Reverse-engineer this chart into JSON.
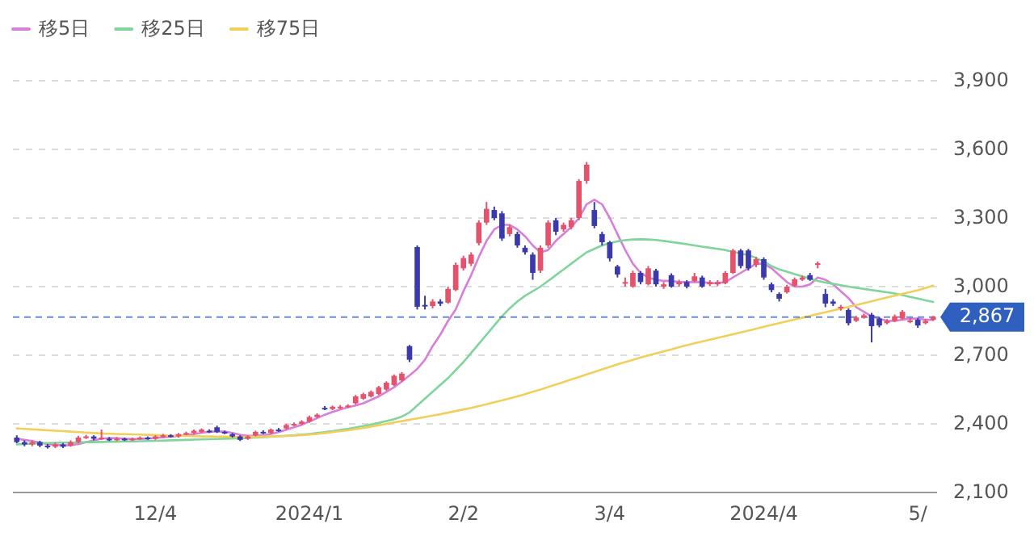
{
  "chart_data": {
    "type": "candlestick",
    "categories": [
      null,
      null,
      null,
      null,
      null,
      null,
      null,
      null,
      null,
      null,
      null,
      null,
      null,
      null,
      null,
      null,
      null,
      null,
      "12/4",
      null,
      null,
      null,
      null,
      null,
      null,
      null,
      null,
      null,
      null,
      null,
      null,
      null,
      null,
      null,
      null,
      null,
      null,
      null,
      "2024/1",
      null,
      null,
      null,
      null,
      null,
      null,
      null,
      null,
      null,
      null,
      null,
      null,
      null,
      null,
      null,
      null,
      null,
      null,
      null,
      "2/2",
      null,
      null,
      null,
      null,
      null,
      null,
      null,
      null,
      null,
      null,
      null,
      null,
      null,
      null,
      null,
      null,
      null,
      null,
      "3/4",
      null,
      null,
      null,
      null,
      null,
      null,
      null,
      null,
      null,
      null,
      null,
      null,
      null,
      null,
      null,
      null,
      null,
      null,
      null,
      "2024/4",
      null,
      null,
      null,
      null,
      null,
      null,
      null,
      null,
      null,
      null,
      null,
      null,
      null,
      null,
      null,
      null,
      null,
      null,
      null,
      "5/",
      null,
      null
    ],
    "ohlc": [
      [
        2340,
        2350,
        2315,
        2320
      ],
      [
        2320,
        2328,
        2302,
        2310
      ],
      [
        2310,
        2328,
        2302,
        2320
      ],
      [
        2320,
        2326,
        2298,
        2305
      ],
      [
        2305,
        2312,
        2292,
        2300
      ],
      [
        2300,
        2318,
        2294,
        2310
      ],
      [
        2310,
        2316,
        2294,
        2300
      ],
      [
        2305,
        2328,
        2300,
        2320
      ],
      [
        2320,
        2348,
        2315,
        2340
      ],
      [
        2340,
        2352,
        2334,
        2345
      ],
      [
        2345,
        2350,
        2328,
        2335
      ],
      [
        2340,
        2375,
        2330,
        2340
      ],
      [
        2335,
        2342,
        2325,
        2330
      ],
      [
        2330,
        2342,
        2325,
        2335
      ],
      [
        2335,
        2340,
        2325,
        2330
      ],
      [
        2330,
        2340,
        2325,
        2335
      ],
      [
        2335,
        2345,
        2330,
        2340
      ],
      [
        2340,
        2345,
        2330,
        2335
      ],
      [
        2335,
        2350,
        2330,
        2345
      ],
      [
        2345,
        2356,
        2340,
        2350
      ],
      [
        2350,
        2355,
        2340,
        2345
      ],
      [
        2345,
        2360,
        2340,
        2355
      ],
      [
        2355,
        2366,
        2350,
        2360
      ],
      [
        2360,
        2375,
        2355,
        2370
      ],
      [
        2365,
        2380,
        2360,
        2375
      ],
      [
        2370,
        2376,
        2360,
        2365
      ],
      [
        2385,
        2392,
        2360,
        2365
      ],
      [
        2365,
        2370,
        2355,
        2360
      ],
      [
        2355,
        2360,
        2340,
        2345
      ],
      [
        2345,
        2350,
        2325,
        2330
      ],
      [
        2335,
        2350,
        2330,
        2345
      ],
      [
        2350,
        2370,
        2345,
        2365
      ],
      [
        2365,
        2372,
        2355,
        2360
      ],
      [
        2360,
        2380,
        2355,
        2375
      ],
      [
        2375,
        2382,
        2365,
        2370
      ],
      [
        2380,
        2400,
        2375,
        2395
      ],
      [
        2395,
        2406,
        2390,
        2400
      ],
      [
        2400,
        2416,
        2395,
        2410
      ],
      [
        2410,
        2436,
        2405,
        2430
      ],
      [
        2430,
        2446,
        2425,
        2440
      ],
      [
        2470,
        2478,
        2460,
        2465
      ],
      [
        2465,
        2480,
        2460,
        2475
      ],
      [
        2470,
        2482,
        2465,
        2475
      ],
      [
        2475,
        2486,
        2470,
        2480
      ],
      [
        2490,
        2526,
        2485,
        2520
      ],
      [
        2510,
        2536,
        2505,
        2530
      ],
      [
        2520,
        2546,
        2515,
        2540
      ],
      [
        2530,
        2566,
        2525,
        2560
      ],
      [
        2550,
        2586,
        2545,
        2580
      ],
      [
        2570,
        2616,
        2565,
        2610
      ],
      [
        2590,
        2626,
        2585,
        2620
      ],
      [
        2740,
        2745,
        2670,
        2680
      ],
      [
        3173,
        3180,
        2900,
        2912
      ],
      [
        2920,
        2960,
        2900,
        2915
      ],
      [
        2915,
        2945,
        2905,
        2935
      ],
      [
        2935,
        2945,
        2915,
        2925
      ],
      [
        2930,
        3000,
        2925,
        2990
      ],
      [
        2985,
        3105,
        2980,
        3095
      ],
      [
        3080,
        3135,
        3070,
        3125
      ],
      [
        3100,
        3150,
        3090,
        3140
      ],
      [
        3190,
        3290,
        3180,
        3280
      ],
      [
        3280,
        3370,
        3270,
        3340
      ],
      [
        3335,
        3350,
        3290,
        3300
      ],
      [
        3320,
        3330,
        3200,
        3210
      ],
      [
        3230,
        3270,
        3220,
        3260
      ],
      [
        3230,
        3240,
        3170,
        3180
      ],
      [
        3170,
        3180,
        3140,
        3150
      ],
      [
        3140,
        3150,
        3030,
        3060
      ],
      [
        3070,
        3180,
        3060,
        3170
      ],
      [
        3180,
        3290,
        3170,
        3280
      ],
      [
        3290,
        3300,
        3225,
        3240
      ],
      [
        3250,
        3280,
        3240,
        3270
      ],
      [
        3260,
        3300,
        3250,
        3290
      ],
      [
        3300,
        3470,
        3290,
        3462
      ],
      [
        3462,
        3545,
        3450,
        3533
      ],
      [
        3335,
        3370,
        3255,
        3265
      ],
      [
        3230,
        3240,
        3180,
        3194
      ],
      [
        3194,
        3200,
        3110,
        3123
      ],
      [
        3088,
        3095,
        3040,
        3053
      ],
      [
        3018,
        3040,
        3000,
        3020
      ],
      [
        3000,
        3070,
        2995,
        3060
      ],
      [
        3060,
        3068,
        3010,
        3020
      ],
      [
        3010,
        3090,
        3005,
        3080
      ],
      [
        3070,
        3078,
        3000,
        3010
      ],
      [
        3000,
        3020,
        2990,
        3010
      ],
      [
        3050,
        3058,
        2995,
        3000
      ],
      [
        3010,
        3030,
        3000,
        3020
      ],
      [
        3020,
        3028,
        2992,
        3000
      ],
      [
        3025,
        3060,
        3020,
        3045
      ],
      [
        3040,
        3048,
        2995,
        3000
      ],
      [
        3010,
        3028,
        3002,
        3020
      ],
      [
        3010,
        3028,
        3002,
        3020
      ],
      [
        3015,
        3068,
        3010,
        3060
      ],
      [
        3060,
        3165,
        3055,
        3158
      ],
      [
        3158,
        3165,
        3080,
        3090
      ],
      [
        3158,
        3165,
        3070,
        3080
      ],
      [
        3095,
        3130,
        3085,
        3120
      ],
      [
        3120,
        3128,
        3030,
        3040
      ],
      [
        3010,
        3018,
        2975,
        2985
      ],
      [
        2968,
        2975,
        2935,
        2947
      ],
      [
        2975,
        3008,
        2970,
        3000
      ],
      [
        3004,
        3040,
        3000,
        3032
      ],
      [
        3030,
        3048,
        3025,
        3040
      ],
      [
        3050,
        3060,
        3025,
        3030
      ],
      [
        3095,
        3110,
        3080,
        3102
      ],
      [
        2968,
        2990,
        2910,
        2926
      ],
      [
        2935,
        2945,
        2915,
        2925
      ],
      [
        2905,
        2920,
        2895,
        2912
      ],
      [
        2898,
        2905,
        2830,
        2840
      ],
      [
        2850,
        2872,
        2845,
        2865
      ],
      [
        2865,
        2882,
        2860,
        2875
      ],
      [
        2877,
        2885,
        2756,
        2827
      ],
      [
        2860,
        2868,
        2822,
        2830
      ],
      [
        2840,
        2858,
        2835,
        2850
      ],
      [
        2850,
        2878,
        2845,
        2870
      ],
      [
        2860,
        2898,
        2855,
        2890
      ],
      [
        2850,
        2862,
        2840,
        2852
      ],
      [
        2855,
        2862,
        2820,
        2830
      ],
      [
        2840,
        2858,
        2835,
        2850
      ],
      [
        2855,
        2872,
        2850,
        2867
      ]
    ],
    "series": [
      {
        "name": "移5日",
        "type": "line",
        "color": "#d77fd9",
        "values": [
          2335,
          2330,
          2325,
          2318,
          2312,
          2308,
          2306,
          2307,
          2312,
          2320,
          2328,
          2335,
          2338,
          2337,
          2335,
          2334,
          2334,
          2336,
          2338,
          2341,
          2344,
          2347,
          2351,
          2355,
          2361,
          2365,
          2367,
          2366,
          2360,
          2352,
          2348,
          2348,
          2350,
          2356,
          2364,
          2374,
          2385,
          2396,
          2410,
          2425,
          2440,
          2452,
          2463,
          2472,
          2480,
          2490,
          2505,
          2520,
          2540,
          2560,
          2585,
          2612,
          2640,
          2680,
          2740,
          2790,
          2850,
          2900,
          2980,
          3050,
          3130,
          3200,
          3250,
          3270,
          3270,
          3250,
          3220,
          3180,
          3150,
          3160,
          3200,
          3230,
          3260,
          3300,
          3360,
          3380,
          3360,
          3300,
          3230,
          3160,
          3100,
          3060,
          3040,
          3030,
          3025,
          3025,
          3020,
          3020,
          3020,
          3020,
          3015,
          3015,
          3020,
          3040,
          3060,
          3080,
          3100,
          3100,
          3080,
          3050,
          3020,
          3000,
          3000,
          3010,
          3040,
          3030,
          3010,
          2980,
          2950,
          2910,
          2890,
          2870,
          2860,
          2850,
          2850,
          2855,
          2860,
          2860,
          2855,
          2855
        ]
      },
      {
        "name": "移25日",
        "type": "line",
        "color": "#7fd59a",
        "values": [
          2310,
          2312,
          2314,
          2315,
          2316,
          2317,
          2318,
          2318,
          2319,
          2320,
          2320,
          2321,
          2322,
          2322,
          2323,
          2323,
          2324,
          2325,
          2326,
          2327,
          2328,
          2329,
          2330,
          2331,
          2332,
          2333,
          2334,
          2335,
          2336,
          2337,
          2338,
          2340,
          2342,
          2344,
          2346,
          2348,
          2350,
          2353,
          2356,
          2360,
          2364,
          2368,
          2373,
          2378,
          2384,
          2390,
          2397,
          2404,
          2412,
          2420,
          2432,
          2450,
          2480,
          2510,
          2540,
          2570,
          2600,
          2635,
          2670,
          2710,
          2750,
          2790,
          2830,
          2870,
          2905,
          2935,
          2960,
          2980,
          3000,
          3025,
          3050,
          3075,
          3100,
          3125,
          3150,
          3165,
          3180,
          3190,
          3198,
          3203,
          3206,
          3207,
          3206,
          3204,
          3200,
          3195,
          3190,
          3185,
          3180,
          3175,
          3170,
          3165,
          3160,
          3152,
          3145,
          3138,
          3125,
          3110,
          3090,
          3075,
          3065,
          3055,
          3045,
          3035,
          3025,
          3018,
          3012,
          3006,
          3000,
          2995,
          2990,
          2985,
          2980,
          2975,
          2970,
          2963,
          2955,
          2948,
          2940,
          2933
        ]
      },
      {
        "name": "移75日",
        "type": "line",
        "color": "#f2cf5b",
        "values": [
          2380,
          2378,
          2376,
          2374,
          2372,
          2370,
          2368,
          2366,
          2364,
          2362,
          2360,
          2358,
          2357,
          2356,
          2355,
          2354,
          2353,
          2352,
          2351,
          2350,
          2349,
          2348,
          2347,
          2346,
          2345,
          2345,
          2344,
          2344,
          2343,
          2343,
          2343,
          2343,
          2344,
          2345,
          2346,
          2347,
          2349,
          2351,
          2353,
          2356,
          2360,
          2364,
          2368,
          2372,
          2377,
          2382,
          2388,
          2394,
          2400,
          2406,
          2412,
          2418,
          2424,
          2430,
          2436,
          2442,
          2449,
          2456,
          2463,
          2470,
          2478,
          2486,
          2494,
          2502,
          2511,
          2520,
          2530,
          2540,
          2550,
          2561,
          2572,
          2583,
          2594,
          2605,
          2616,
          2627,
          2638,
          2649,
          2660,
          2670,
          2680,
          2690,
          2699,
          2708,
          2717,
          2726,
          2735,
          2744,
          2752,
          2760,
          2768,
          2776,
          2784,
          2792,
          2800,
          2808,
          2816,
          2824,
          2832,
          2840,
          2848,
          2856,
          2864,
          2872,
          2880,
          2888,
          2896,
          2904,
          2912,
          2920,
          2928,
          2936,
          2944,
          2952,
          2960,
          2968,
          2976,
          2984,
          2994,
          3004
        ]
      }
    ],
    "ylim": [
      2100,
      3900
    ],
    "yticks": [
      {
        "value": 2100,
        "label": "2,100"
      },
      {
        "value": 2400,
        "label": "2,400"
      },
      {
        "value": 2700,
        "label": "2,700"
      },
      {
        "value": 3000,
        "label": "3,000"
      },
      {
        "value": 3300,
        "label": "3,300"
      },
      {
        "value": 3600,
        "label": "3,600"
      },
      {
        "value": 3900,
        "label": "3,900"
      }
    ],
    "ref_lines": [
      {
        "axis": "y",
        "value": 2867,
        "label": "2,867",
        "color": "#2f5fbf",
        "line_style": "dashed"
      }
    ],
    "grid": "y",
    "legend": "top left"
  }
}
